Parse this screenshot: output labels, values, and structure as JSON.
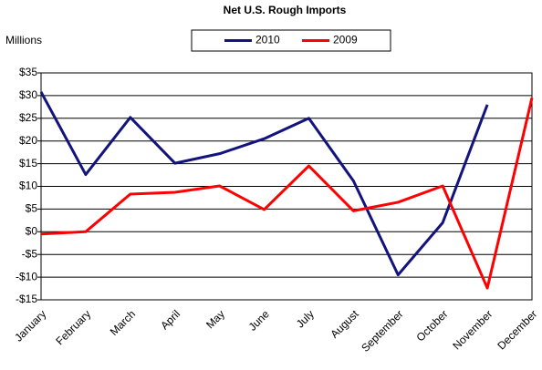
{
  "chart_data": {
    "type": "line",
    "title": "Net U.S. Rough Imports",
    "y_label": "Millions",
    "categories": [
      "January",
      "February",
      "March",
      "April",
      "May",
      "June",
      "July",
      "August",
      "September",
      "October",
      "November",
      "December"
    ],
    "series": [
      {
        "name": "2010",
        "color": "#13137e",
        "values": [
          30.8,
          12.6,
          25.2,
          15.1,
          17.2,
          20.5,
          25.0,
          11.2,
          -9.5,
          2.0,
          28.0,
          null
        ]
      },
      {
        "name": "2009",
        "color": "#ff0000",
        "values": [
          -0.5,
          0,
          8.3,
          8.7,
          10.1,
          4.9,
          14.5,
          4.6,
          6.5,
          10.1,
          -12.4,
          29.5
        ]
      }
    ],
    "ylim": [
      -15,
      35
    ],
    "yticks": [
      {
        "value": -15,
        "label": "-$15"
      },
      {
        "value": -10,
        "label": "-$10"
      },
      {
        "value": -5,
        "label": "-$5"
      },
      {
        "value": 0,
        "label": "$0"
      },
      {
        "value": 5,
        "label": "$5"
      },
      {
        "value": 10,
        "label": "$10"
      },
      {
        "value": 15,
        "label": "$15"
      },
      {
        "value": 20,
        "label": "$20"
      },
      {
        "value": 25,
        "label": "$25"
      },
      {
        "value": 30,
        "label": "$30"
      },
      {
        "value": 35,
        "label": "$35"
      }
    ],
    "negative_label_color": "#ff0000",
    "grid": true,
    "legend": "top"
  }
}
